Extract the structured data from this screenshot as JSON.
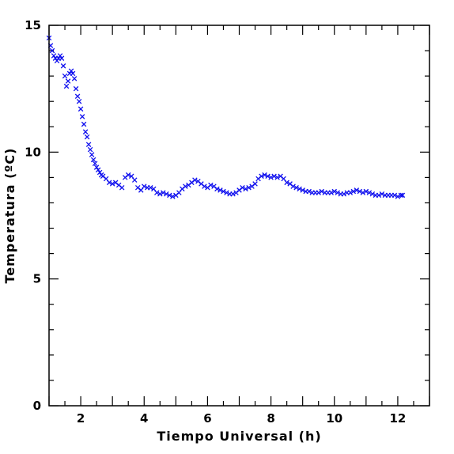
{
  "chart_data": {
    "type": "scatter",
    "title": "",
    "xlabel": "Tiempo Universal (h)",
    "ylabel": "Temperatura (ºC)",
    "xlim": [
      1,
      13
    ],
    "ylim": [
      0,
      15
    ],
    "x_ticks": [
      2,
      4,
      6,
      8,
      10,
      12
    ],
    "y_ticks": [
      0,
      5,
      10,
      15
    ],
    "grid": false,
    "legend": "none",
    "marker": "x",
    "color": "#1010ee",
    "series": [
      {
        "x": [
          1.0,
          1.05,
          1.1,
          1.15,
          1.2,
          1.25,
          1.3,
          1.35,
          1.4,
          1.45,
          1.5,
          1.55,
          1.6,
          1.65,
          1.7,
          1.75,
          1.8,
          1.85,
          1.9,
          1.95,
          2.0,
          2.05,
          2.1,
          2.15,
          2.2,
          2.25,
          2.3,
          2.35,
          2.4,
          2.45,
          2.5,
          2.55,
          2.6,
          2.65,
          2.7,
          2.8,
          2.9,
          3.0,
          3.1,
          3.2,
          3.3,
          3.4,
          3.5,
          3.6,
          3.7,
          3.8,
          3.9,
          4.0,
          4.1,
          4.2,
          4.3,
          4.4,
          4.5,
          4.6,
          4.7,
          4.8,
          4.9,
          5.0,
          5.1,
          5.2,
          5.3,
          5.4,
          5.5,
          5.6,
          5.7,
          5.8,
          5.9,
          6.0,
          6.1,
          6.2,
          6.3,
          6.4,
          6.5,
          6.6,
          6.7,
          6.8,
          6.9,
          7.0,
          7.1,
          7.2,
          7.3,
          7.4,
          7.5,
          7.6,
          7.7,
          7.8,
          7.9,
          8.0,
          8.1,
          8.2,
          8.3,
          8.4,
          8.5,
          8.6,
          8.7,
          8.8,
          8.9,
          9.0,
          9.1,
          9.2,
          9.3,
          9.4,
          9.5,
          9.6,
          9.7,
          9.8,
          9.9,
          10.0,
          10.1,
          10.2,
          10.3,
          10.4,
          10.5,
          10.6,
          10.7,
          10.8,
          10.9,
          11.0,
          11.1,
          11.2,
          11.3,
          11.4,
          11.5,
          11.6,
          11.7,
          11.8,
          11.9,
          12.0,
          12.1,
          12.15
        ],
        "y": [
          14.5,
          14.2,
          14.0,
          13.8,
          13.7,
          13.6,
          13.7,
          13.8,
          13.7,
          13.4,
          13.0,
          12.6,
          12.8,
          13.1,
          13.2,
          13.1,
          12.9,
          12.5,
          12.2,
          12.0,
          11.7,
          11.4,
          11.1,
          10.8,
          10.6,
          10.3,
          10.1,
          9.9,
          9.7,
          9.55,
          9.4,
          9.3,
          9.2,
          9.1,
          9.05,
          8.95,
          8.8,
          8.75,
          8.8,
          8.7,
          8.6,
          9.0,
          9.1,
          9.05,
          8.9,
          8.6,
          8.5,
          8.65,
          8.6,
          8.6,
          8.55,
          8.4,
          8.35,
          8.4,
          8.35,
          8.3,
          8.25,
          8.3,
          8.4,
          8.55,
          8.65,
          8.7,
          8.8,
          8.9,
          8.85,
          8.75,
          8.65,
          8.6,
          8.7,
          8.65,
          8.55,
          8.5,
          8.45,
          8.4,
          8.35,
          8.35,
          8.4,
          8.5,
          8.6,
          8.55,
          8.6,
          8.65,
          8.75,
          8.95,
          9.05,
          9.1,
          9.05,
          9.0,
          9.05,
          9.0,
          9.05,
          8.95,
          8.8,
          8.75,
          8.65,
          8.6,
          8.55,
          8.5,
          8.45,
          8.45,
          8.4,
          8.4,
          8.4,
          8.45,
          8.4,
          8.4,
          8.4,
          8.45,
          8.4,
          8.35,
          8.35,
          8.4,
          8.4,
          8.45,
          8.5,
          8.45,
          8.4,
          8.45,
          8.4,
          8.35,
          8.3,
          8.3,
          8.35,
          8.3,
          8.3,
          8.3,
          8.3,
          8.25,
          8.3,
          8.3
        ]
      }
    ]
  }
}
